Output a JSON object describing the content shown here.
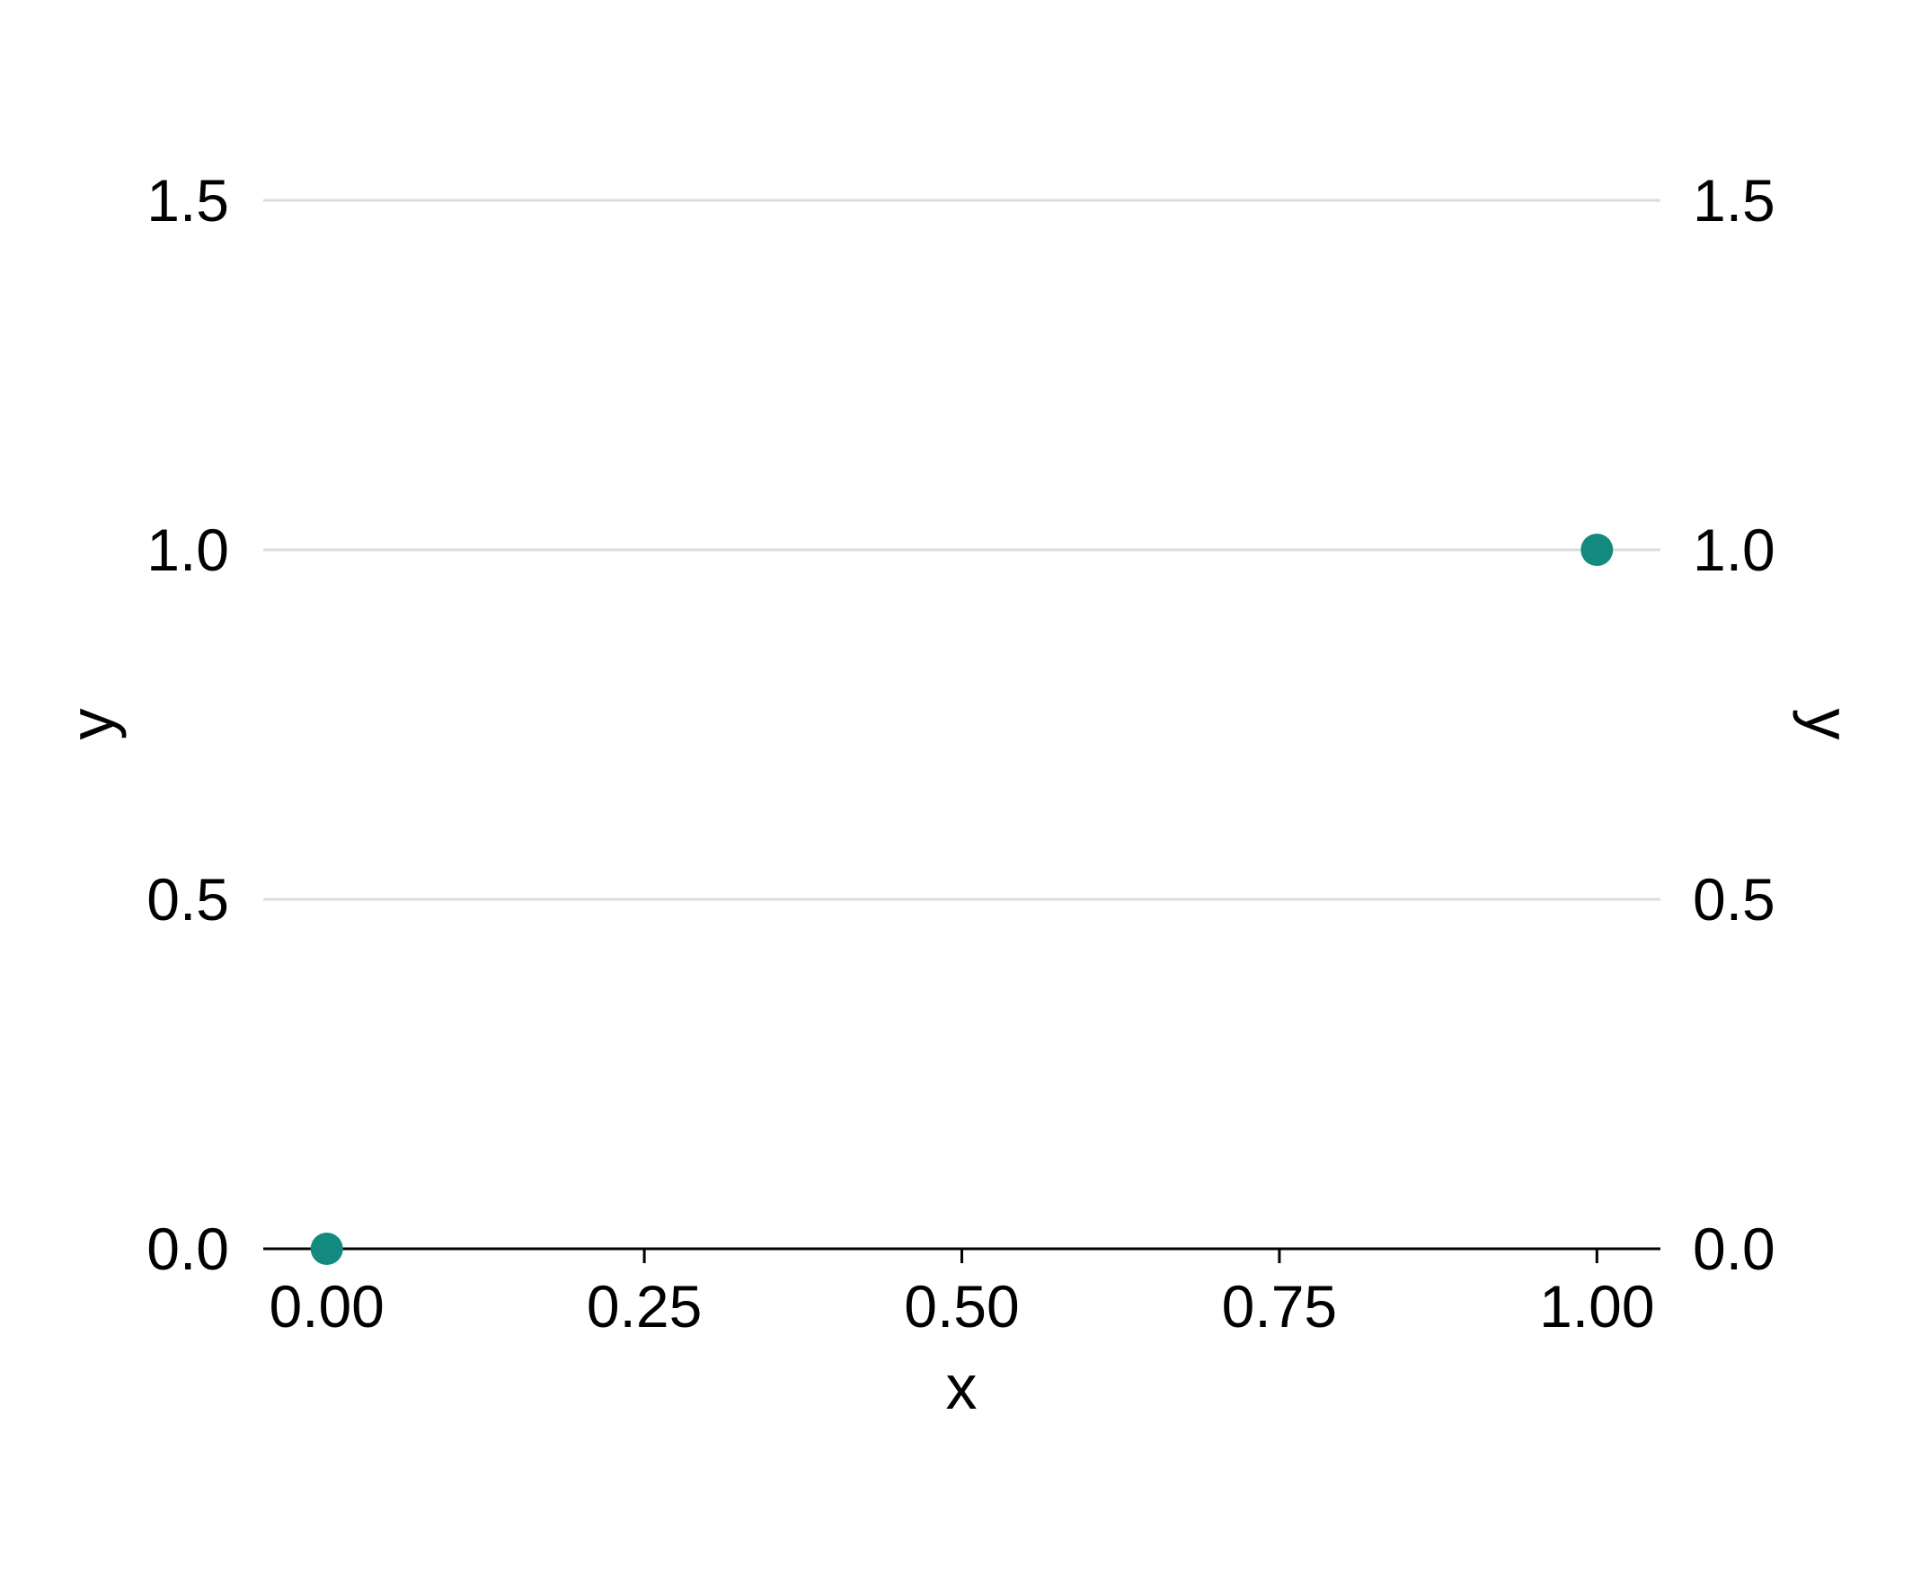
{
  "chart_data": {
    "type": "scatter",
    "title": "",
    "xlabel": "x",
    "ylabel": "y",
    "ylabel_right": "y",
    "xlim": [
      -0.05,
      1.05
    ],
    "ylim": [
      0,
      1.5
    ],
    "x_ticks": [
      0,
      0.25,
      0.5,
      0.75,
      1
    ],
    "x_tick_labels": [
      "0.00",
      "0.25",
      "0.50",
      "0.75",
      "1.00"
    ],
    "y_ticks": [
      0,
      0.5,
      1,
      1.5
    ],
    "y_tick_labels": [
      "0.0",
      "0.5",
      "1.0",
      "1.5"
    ],
    "grid": "horizontal",
    "legend": "none",
    "point_color": "#138a80",
    "series": [
      {
        "points": [
          {
            "x": 0,
            "y": 0
          },
          {
            "x": 1,
            "y": 1
          }
        ]
      }
    ]
  }
}
